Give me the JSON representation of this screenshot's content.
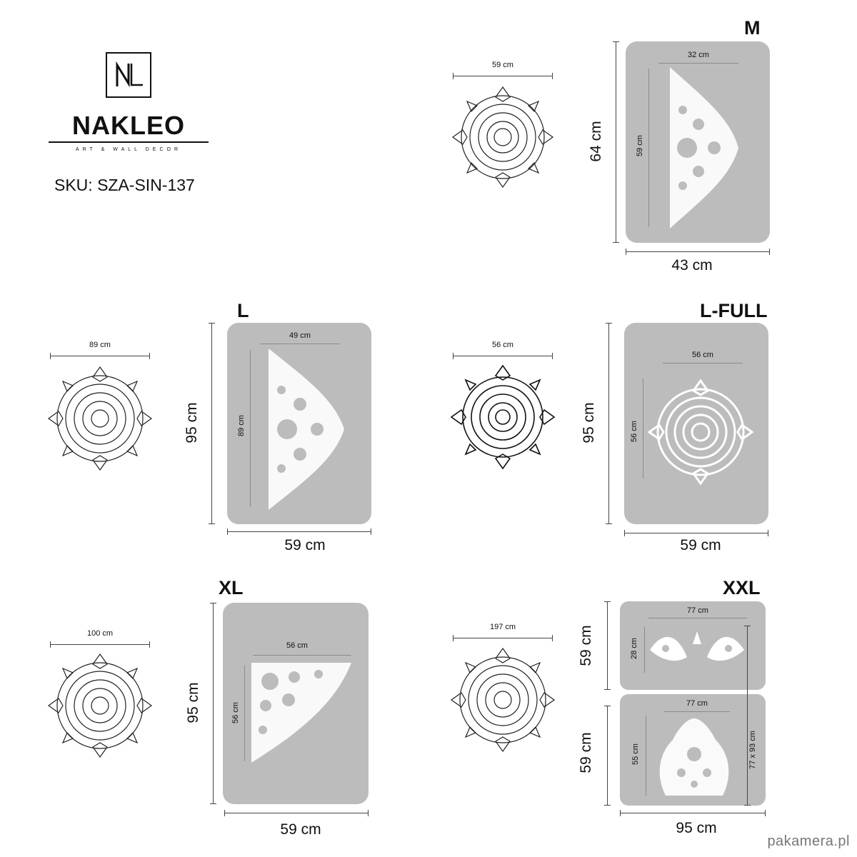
{
  "brand": {
    "logo_mark": "NL",
    "name": "NAKLEO",
    "tagline": "ART & WALL DECOR",
    "sku": "SKU: SZA-SIN-137"
  },
  "panels": {
    "M": {
      "size_label": "M",
      "preview_width": "59 cm",
      "sheet_height": "64 cm",
      "sheet_width": "43 cm",
      "stencil_width": "32 cm",
      "stencil_height": "59 cm"
    },
    "L": {
      "size_label": "L",
      "preview_width": "89 cm",
      "sheet_height": "95 cm",
      "sheet_width": "59 cm",
      "stencil_width": "49 cm",
      "stencil_height": "89 cm"
    },
    "LFULL": {
      "size_label": "L-FULL",
      "preview_width": "56 cm",
      "sheet_height": "95 cm",
      "sheet_width": "59 cm",
      "stencil_width": "56 cm",
      "stencil_height": "56 cm"
    },
    "XL": {
      "size_label": "XL",
      "preview_width": "100 cm",
      "sheet_height": "95 cm",
      "sheet_width": "59 cm",
      "stencil_width": "56 cm",
      "stencil_height": "56 cm"
    },
    "XXL": {
      "size_label": "XXL",
      "preview_width": "197 cm",
      "sheet1_height": "59 cm",
      "sheet2_height": "59 cm",
      "sheet_width": "95 cm",
      "stencil1_width": "77 cm",
      "stencil1_height": "28 cm",
      "stencil2_width": "77 cm",
      "stencil2_height": "55 cm",
      "total_dims": "77 x 93 cm"
    }
  },
  "watermark": "pakamera.pl",
  "colors": {
    "sheet_gray": "#bdbcbc",
    "ink": "#111111",
    "stencil_white": "#ffffff"
  },
  "icons": {
    "mandala": "mandala-icon",
    "stencil": "stencil-cutout-icon"
  }
}
